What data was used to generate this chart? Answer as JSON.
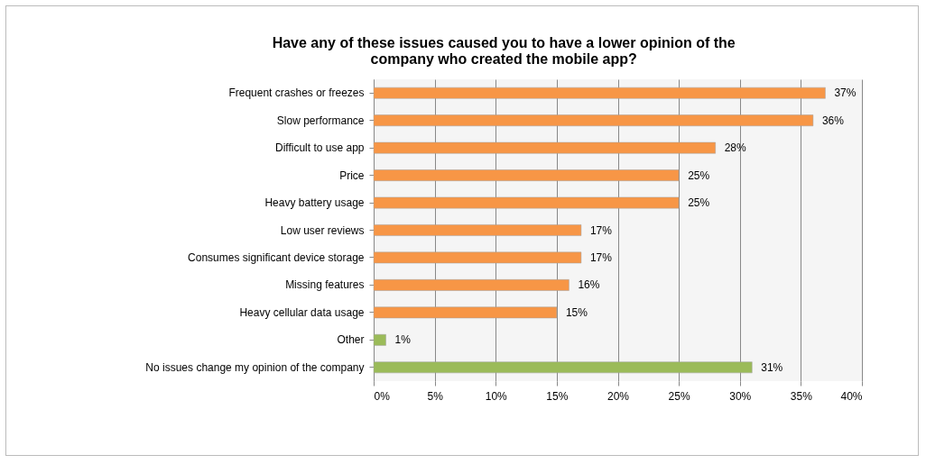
{
  "chart_data": {
    "type": "bar",
    "orientation": "horizontal",
    "title": "Have any of these issues caused you to have a lower opinion of the company who created the mobile app?",
    "categories": [
      "Frequent crashes or freezes",
      "Slow performance",
      "Difficult to use app",
      "Price",
      "Heavy battery usage",
      "Low user reviews",
      "Consumes significant device storage",
      "Missing features",
      "Heavy cellular data usage",
      "Other",
      "No issues change my opinion of the company"
    ],
    "values": [
      37,
      36,
      28,
      25,
      25,
      17,
      17,
      16,
      15,
      1,
      31
    ],
    "value_labels": [
      "37%",
      "36%",
      "28%",
      "25%",
      "25%",
      "17%",
      "17%",
      "16%",
      "15%",
      "1%",
      "31%"
    ],
    "colors": [
      "#f79646",
      "#f79646",
      "#f79646",
      "#f79646",
      "#f79646",
      "#f79646",
      "#f79646",
      "#f79646",
      "#f79646",
      "#9bbb59",
      "#9bbb59"
    ],
    "xlim": [
      0,
      40
    ],
    "xticks": [
      {
        "value": 0,
        "label": "0%"
      },
      {
        "value": 5,
        "label": "5%"
      },
      {
        "value": 10,
        "label": "10%"
      },
      {
        "value": 15,
        "label": "15%"
      },
      {
        "value": 20,
        "label": "20%"
      },
      {
        "value": 25,
        "label": "25%"
      },
      {
        "value": 30,
        "label": "30%"
      },
      {
        "value": 35,
        "label": "35%"
      },
      {
        "value": 40,
        "label": "40%"
      }
    ],
    "grid": "x"
  }
}
